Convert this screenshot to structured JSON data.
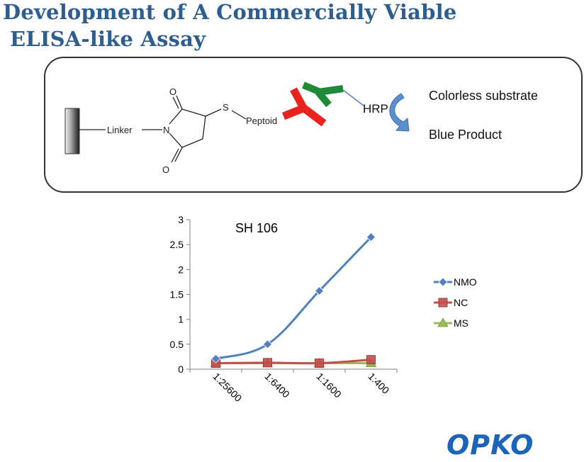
{
  "slide": {
    "title_line1": "Development of A Commercially Viable",
    "title_line2": "ELISA-like Assay"
  },
  "scheme": {
    "linker": "Linker",
    "n_atom": "N",
    "o_top": "O",
    "o_bottom": "O",
    "s_atom": "S",
    "peptoid": "Peptoid",
    "hrp": "HRP",
    "substrate": "Colorless substrate",
    "product": "Blue Product",
    "colors": {
      "antibody1": "#e8221d",
      "antibody2": "#1f8a3a",
      "arrow": "#5b8fd0",
      "hrp_line": "#4a7fc0"
    }
  },
  "chart_data": {
    "type": "line",
    "title": "SH 106",
    "categories": [
      "1:25600",
      "1:6400",
      "1:1600",
      "1:400"
    ],
    "ylim": [
      0,
      3
    ],
    "yticks": [
      "0",
      "0.5",
      "1",
      "1.5",
      "2",
      "2.5",
      "3"
    ],
    "grid": false,
    "legend": "right",
    "series": [
      {
        "name": "NMO",
        "values": [
          0.21,
          0.5,
          1.57,
          2.65
        ],
        "color": "#4f81bd",
        "marker": "diamond"
      },
      {
        "name": "NC",
        "values": [
          0.12,
          0.13,
          0.12,
          0.19
        ],
        "color": "#c0504d",
        "marker": "square"
      },
      {
        "name": "MS",
        "values": [
          0.12,
          0.12,
          0.12,
          0.12
        ],
        "color": "#9bbb59",
        "marker": "triangle"
      }
    ]
  },
  "logo": {
    "text": "OPKO",
    "color": "#1b64b8"
  }
}
